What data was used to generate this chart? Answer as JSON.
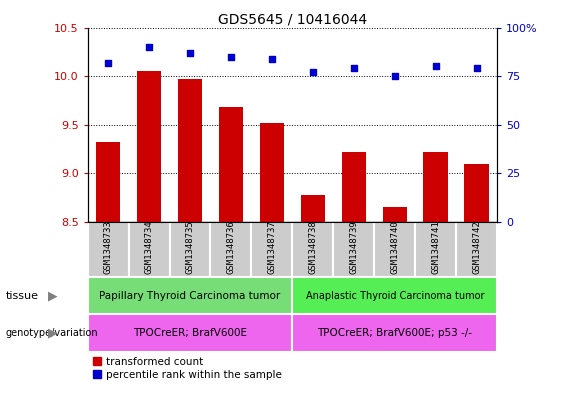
{
  "title": "GDS5645 / 10416044",
  "samples": [
    "GSM1348733",
    "GSM1348734",
    "GSM1348735",
    "GSM1348736",
    "GSM1348737",
    "GSM1348738",
    "GSM1348739",
    "GSM1348740",
    "GSM1348741",
    "GSM1348742"
  ],
  "transformed_count": [
    9.32,
    10.05,
    9.97,
    9.68,
    9.52,
    8.78,
    9.22,
    8.65,
    9.22,
    9.1
  ],
  "percentile_rank": [
    82,
    90,
    87,
    85,
    84,
    77,
    79,
    75,
    80,
    79
  ],
  "ylim_left": [
    8.5,
    10.5
  ],
  "ylim_right": [
    0,
    100
  ],
  "bar_color": "#cc0000",
  "scatter_color": "#0000cc",
  "tissue_group1": "Papillary Thyroid Carcinoma tumor",
  "tissue_group2": "Anaplastic Thyroid Carcinoma tumor",
  "tissue_color1": "#77dd77",
  "tissue_color2": "#55ee55",
  "genotype_group1": "TPOCreER; BrafV600E",
  "genotype_group2": "TPOCreER; BrafV600E; p53 -/-",
  "genotype_color": "#ee66ee",
  "yticks_left": [
    8.5,
    9.0,
    9.5,
    10.0,
    10.5
  ],
  "yticks_right": [
    0,
    25,
    50,
    75,
    100
  ],
  "legend_red": "transformed count",
  "legend_blue": "percentile rank within the sample",
  "group1_count": 5,
  "group2_count": 5
}
